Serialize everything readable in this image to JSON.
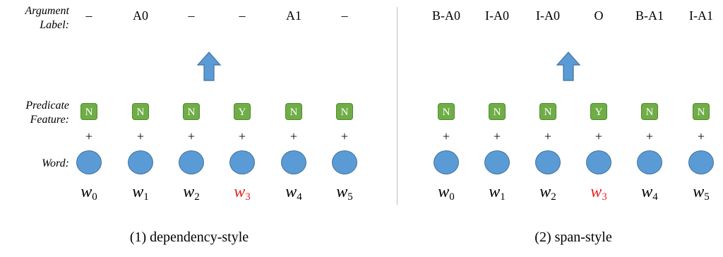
{
  "row_labels": {
    "argument": [
      "Argument",
      "Label:"
    ],
    "predicate": [
      "Predicate",
      "Feature:"
    ],
    "word": "Word:"
  },
  "panels": [
    {
      "caption": "(1) dependency-style",
      "labels": [
        "–",
        "A0",
        "–",
        "–",
        "A1",
        "–"
      ],
      "features": [
        "N",
        "N",
        "N",
        "Y",
        "N",
        "N"
      ],
      "plus": [
        "+",
        "+",
        "+",
        "+",
        "+",
        "+"
      ],
      "words": [
        {
          "base": "w",
          "sub": "0"
        },
        {
          "base": "w",
          "sub": "1"
        },
        {
          "base": "w",
          "sub": "2"
        },
        {
          "base": "w",
          "sub": "3"
        },
        {
          "base": "w",
          "sub": "4"
        },
        {
          "base": "w",
          "sub": "5"
        }
      ],
      "predicate_index": 3
    },
    {
      "caption": "(2) span-style",
      "labels": [
        "B-A0",
        "I-A0",
        "I-A0",
        "O",
        "B-A1",
        "I-A1"
      ],
      "features": [
        "N",
        "N",
        "N",
        "Y",
        "N",
        "N"
      ],
      "plus": [
        "+",
        "+",
        "+",
        "+",
        "+",
        "+"
      ],
      "words": [
        {
          "base": "w",
          "sub": "0"
        },
        {
          "base": "w",
          "sub": "1"
        },
        {
          "base": "w",
          "sub": "2"
        },
        {
          "base": "w",
          "sub": "3"
        },
        {
          "base": "w",
          "sub": "4"
        },
        {
          "base": "w",
          "sub": "5"
        }
      ],
      "predicate_index": 3
    }
  ],
  "colors": {
    "feature_box": "#70ad47",
    "word_circle": "#5b9bd5",
    "arrow": "#5b9bd5",
    "predicate_word": "#e8201f"
  }
}
